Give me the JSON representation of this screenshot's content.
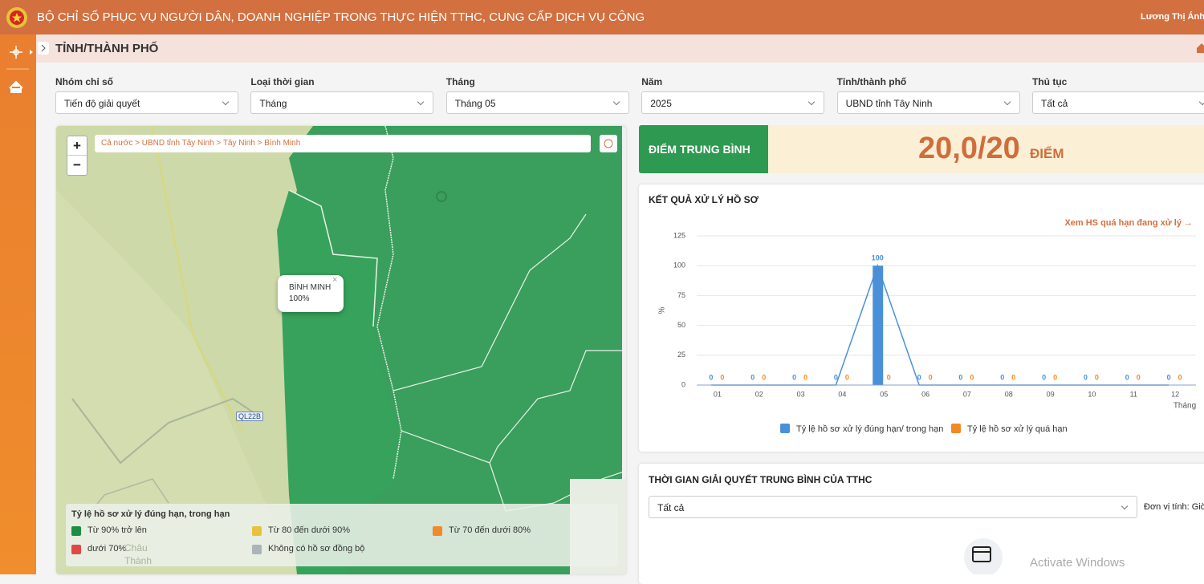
{
  "header": {
    "title": "BỘ CHỈ SỐ PHỤC VỤ NGƯỜI DÂN, DOANH NGHIỆP TRONG THỰC HIỆN TTHC, CUNG CẤP DỊCH VỤ CÔNG",
    "user": "Lương Thị Ánh"
  },
  "page_title": "TỈNH/THÀNH PHỐ",
  "filters": [
    {
      "label": "Nhóm chỉ số",
      "value": "Tiến độ giải quyết"
    },
    {
      "label": "Loại thời gian",
      "value": "Tháng"
    },
    {
      "label": "Tháng",
      "value": "Tháng 05"
    },
    {
      "label": "Năm",
      "value": "2025"
    },
    {
      "label": "Tỉnh/thành phố",
      "value": "UBND tỉnh Tây Ninh"
    },
    {
      "label": "Thủ tục",
      "value": "Tất cả"
    }
  ],
  "map": {
    "zoom_in": "+",
    "zoom_out": "−",
    "breadcrumb": "Cả nước > UBND tỉnh Tây Ninh > Tây Ninh > Bình Minh",
    "popup": {
      "name": "BÌNH MINH",
      "value": "100%"
    },
    "road_label": "QL22B",
    "place_label": "Châu Thành",
    "legend": {
      "title": "Tỷ lệ hồ sơ xử lý đúng hạn, trong hạn",
      "items": [
        {
          "label": "Từ 90% trở lên",
          "color": "#1f8d46"
        },
        {
          "label": "Từ 80 đến dưới 90%",
          "color": "#e6c33b"
        },
        {
          "label": "Từ 70 đến dưới 80%",
          "color": "#f08a2a"
        },
        {
          "label": "dưới 70%",
          "color": "#e04848"
        },
        {
          "label": "Không có hồ sơ đồng bộ",
          "color": "#a9b5b9"
        }
      ]
    }
  },
  "score": {
    "label": "ĐIỂM TRUNG BÌNH",
    "value": "20,0/20",
    "unit": "ĐIỂM"
  },
  "chart_data": {
    "type": "bar",
    "title": "KẾT QUẢ XỬ LÝ HỒ SƠ",
    "link": "Xem HS quá hạn đang xử lý →",
    "ylabel": "%",
    "xlabel": "Tháng",
    "categories": [
      "01",
      "02",
      "03",
      "04",
      "05",
      "06",
      "07",
      "08",
      "09",
      "10",
      "11",
      "12"
    ],
    "series": [
      {
        "name": "Tỷ lệ hồ sơ xử lý đúng hạn/ trong hạn",
        "color": "#4a90d9",
        "line": true,
        "values": [
          0,
          0,
          0,
          0,
          100,
          0,
          0,
          0,
          0,
          0,
          0,
          0
        ]
      },
      {
        "name": "Tỷ lệ hồ sơ xử lý quá hạn",
        "color": "#f08a24",
        "line": false,
        "values": [
          0,
          0,
          0,
          0,
          0,
          0,
          0,
          0,
          0,
          0,
          0,
          0
        ]
      }
    ],
    "ylim": [
      0,
      125
    ],
    "yticks": [
      0,
      25,
      50,
      75,
      100,
      125
    ],
    "grid": true
  },
  "time_panel": {
    "title": "THỜI GIAN GIẢI QUYẾT TRUNG BÌNH CỦA TTHC",
    "select": "Tất cả",
    "unit": "Đơn vị tính: Giờ"
  },
  "watermark": "Activate Windows"
}
